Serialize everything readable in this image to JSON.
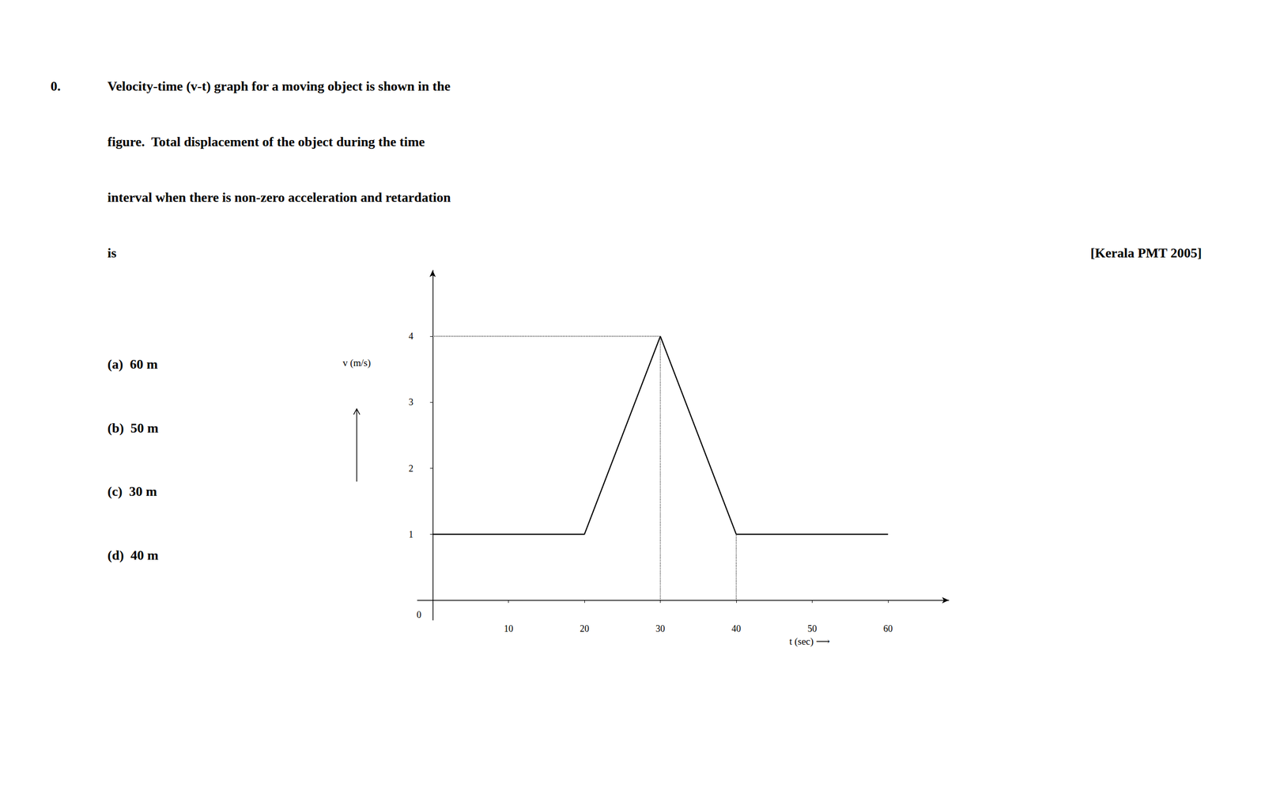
{
  "chart_data": {
    "type": "line",
    "annotations": [
      "0.",
      "Velocity-time (v-t) graph for a moving object is shown in the",
      "figure.  Total displacement of the object during the time",
      "interval when there is non-zero acceleration and retardation",
      "is",
      "[Kerala PMT 2005]",
      "(a)  60 m",
      "(b)  50 m",
      "(c)  30 m",
      "(d)  40 m",
      "0"
    ],
    "xlabel": "t (sec) ⟶",
    "ylabel": "v (m/s)",
    "series": [
      {
        "x": [
          0,
          20,
          20,
          30,
          40,
          40,
          60
        ],
        "values": [
          1,
          1,
          1,
          4,
          1,
          1,
          1
        ],
        "color": "#000000",
        "line_style": "solid"
      },
      {
        "x": [
          0,
          30
        ],
        "values": [
          4,
          4
        ],
        "color": "#444444",
        "line_style": "dotted"
      },
      {
        "x": [
          30,
          30
        ],
        "values": [
          0,
          4
        ],
        "color": "#444444",
        "line_style": "dotted"
      },
      {
        "x": [
          40,
          40
        ],
        "values": [
          0,
          1
        ],
        "color": "#444444",
        "line_style": "dotted"
      }
    ],
    "xlim": [
      -2,
      68
    ],
    "ylim": [
      -0.3,
      5.0
    ],
    "xticks": [
      10,
      20,
      30,
      40,
      50,
      60
    ],
    "yticks": [
      1,
      2,
      3,
      4
    ],
    "grid": false
  }
}
